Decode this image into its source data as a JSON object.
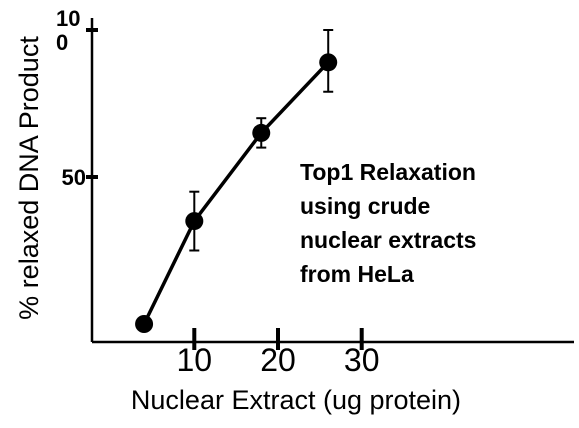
{
  "chart_data": {
    "type": "line",
    "title": "",
    "xlabel": "Nuclear Extract (ug protein)",
    "ylabel": "% relaxed DNA Product",
    "xlim": [
      2,
      32
    ],
    "ylim": [
      0,
      100
    ],
    "x_ticks": [
      {
        "value": 10,
        "label": "10"
      },
      {
        "value": 20,
        "label": "20"
      },
      {
        "value": 30,
        "label": "30"
      }
    ],
    "y_ticks": [
      {
        "value": 50,
        "label": "50"
      },
      {
        "value": 100,
        "label": "10\n0"
      }
    ],
    "series": [
      {
        "points": [
          {
            "x": 4,
            "y": 0,
            "err_low": 0,
            "err_high": 0
          },
          {
            "x": 10,
            "y": 35,
            "err_low": 25,
            "err_high": 45
          },
          {
            "x": 18,
            "y": 65,
            "err_low": 60,
            "err_high": 70
          },
          {
            "x": 26,
            "y": 89,
            "err_low": 79,
            "err_high": 100
          }
        ]
      }
    ],
    "annotation": [
      "Top1 Relaxation",
      "using crude",
      "nuclear extracts",
      "from HeLa"
    ],
    "grid": false,
    "legend": "none"
  }
}
